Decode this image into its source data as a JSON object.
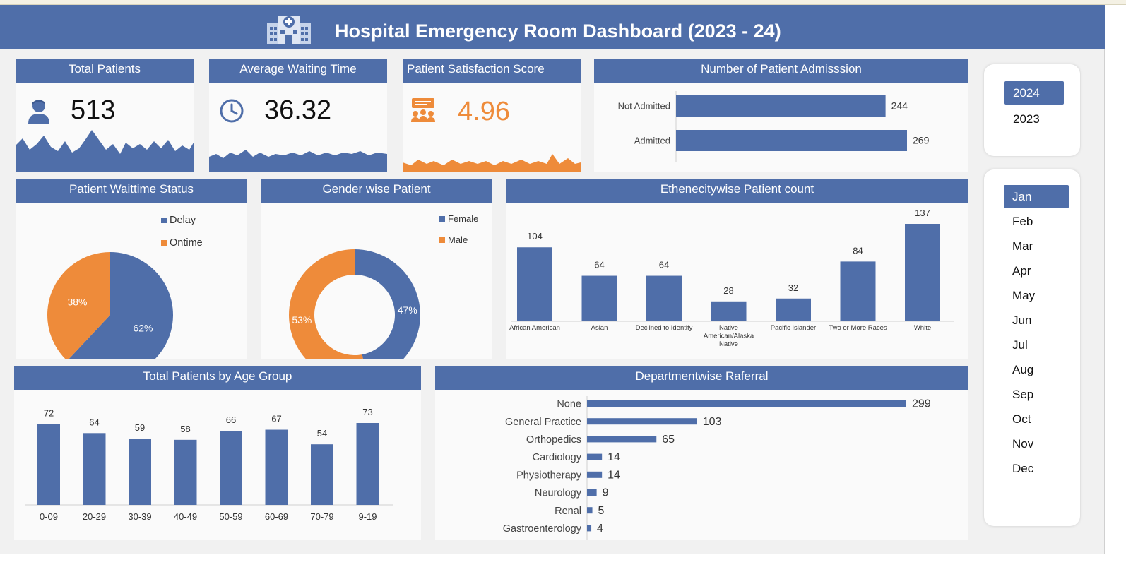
{
  "header": {
    "title": "Hospital Emergency Room Dashboard (2023 - 24)",
    "icon": "hospital-icon"
  },
  "kpis": {
    "total_patients": {
      "title": "Total Patients",
      "value": "513",
      "icon": "patient-icon",
      "color": "#4f6ea9"
    },
    "avg_wait": {
      "title": "Average Waiting Time",
      "value": "36.32",
      "icon": "clock-icon",
      "color": "#4f6ea9"
    },
    "satisfaction": {
      "title": "Patient Satisfaction Score",
      "value": "4.96",
      "icon": "feedback-icon",
      "color": "#ee8b3a"
    }
  },
  "colors": {
    "blue": "#4f6ea9",
    "orange": "#ee8b3a",
    "header": "#4f6ea9"
  },
  "slicers": {
    "years": {
      "items": [
        "2024",
        "2023"
      ],
      "selected": "2024"
    },
    "months": {
      "items": [
        "Jan",
        "Feb",
        "Mar",
        "Apr",
        "May",
        "Jun",
        "Jul",
        "Aug",
        "Sep",
        "Oct",
        "Nov",
        "Dec"
      ],
      "selected": "Jan"
    }
  },
  "chart_data": [
    {
      "id": "admission",
      "type": "bar",
      "orientation": "horizontal",
      "title": "Number of Patient Admisssion",
      "categories": [
        "Not Admitted",
        "Admitted"
      ],
      "values": [
        244,
        269
      ]
    },
    {
      "id": "waittime",
      "type": "pie",
      "title": "Patient Waittime Status",
      "categories": [
        "Delay",
        "Ontime"
      ],
      "values": [
        62,
        38
      ],
      "labels": [
        "62%",
        "38%"
      ],
      "legend": "top-right"
    },
    {
      "id": "gender",
      "type": "pie",
      "subtype": "donut",
      "title": "Gender wise Patient",
      "categories": [
        "Female",
        "Male"
      ],
      "values": [
        47,
        53
      ],
      "labels": [
        "47%",
        "53%"
      ],
      "legend": "top-right"
    },
    {
      "id": "ethnicity",
      "type": "bar",
      "title": "Ethenecitywise Patient count",
      "categories": [
        "African American",
        "Asian",
        "Declined to Identify",
        "Native American/Alaska Native",
        "Pacific Islander",
        "Two or More Races",
        "White"
      ],
      "values": [
        104,
        64,
        64,
        28,
        32,
        84,
        137
      ]
    },
    {
      "id": "age",
      "type": "bar",
      "title": "Total Patients by Age Group",
      "categories": [
        "0-09",
        "20-29",
        "30-39",
        "40-49",
        "50-59",
        "60-69",
        "70-79",
        "9-19"
      ],
      "values": [
        72,
        64,
        59,
        58,
        66,
        67,
        54,
        73
      ]
    },
    {
      "id": "referral",
      "type": "bar",
      "orientation": "horizontal",
      "title": "Departmentwise Raferral",
      "categories": [
        "None",
        "General Practice",
        "Orthopedics",
        "Cardiology",
        "Physiotherapy",
        "Neurology",
        "Renal",
        "Gastroenterology"
      ],
      "values": [
        299,
        103,
        65,
        14,
        14,
        9,
        5,
        4
      ]
    }
  ]
}
